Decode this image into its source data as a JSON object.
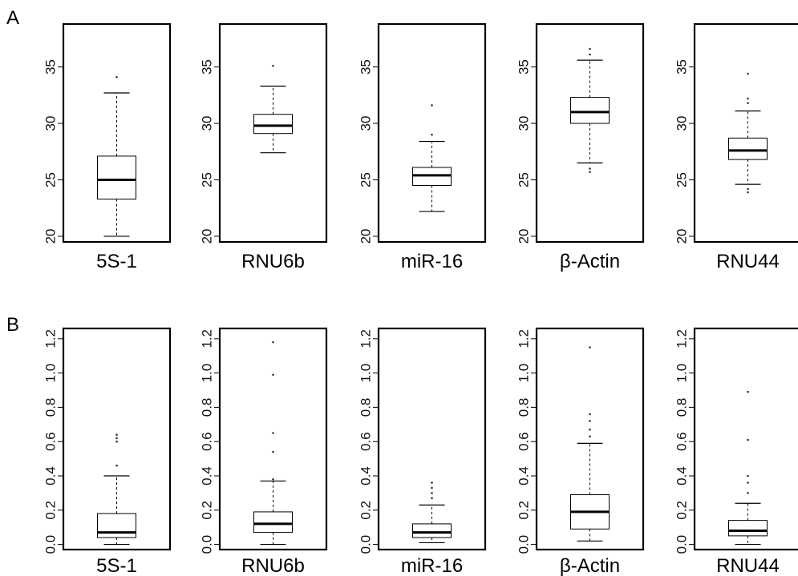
{
  "chart_data": [
    {
      "type": "box",
      "panel_label": "A",
      "ylim": [
        19.5,
        38.8
      ],
      "yticks": [
        20,
        25,
        30,
        35
      ],
      "ytick_labels": [
        "20",
        "25",
        "30",
        "35"
      ],
      "grid": false,
      "boxes": [
        {
          "category": "5S-1",
          "whisker_low": 20.0,
          "q1": 23.3,
          "median": 25.0,
          "q3": 27.1,
          "whisker_high": 32.7,
          "outliers": [
            34.1
          ]
        },
        {
          "category": "RNU6b",
          "whisker_low": 27.4,
          "q1": 29.1,
          "median": 29.8,
          "q3": 30.8,
          "whisker_high": 33.3,
          "outliers": [
            35.1
          ]
        },
        {
          "category": "miR-16",
          "whisker_low": 22.2,
          "q1": 24.5,
          "median": 25.4,
          "q3": 26.1,
          "whisker_high": 28.4,
          "outliers": [
            29.0,
            31.6
          ]
        },
        {
          "category": "β-Actin",
          "whisker_low": 26.5,
          "q1": 30.0,
          "median": 31.0,
          "q3": 32.3,
          "whisker_high": 35.6,
          "outliers": [
            25.7,
            26.0,
            36.1,
            36.6
          ]
        },
        {
          "category": "RNU44",
          "whisker_low": 24.6,
          "q1": 26.8,
          "median": 27.6,
          "q3": 28.7,
          "whisker_high": 31.1,
          "outliers": [
            23.9,
            24.2,
            31.8,
            32.2,
            34.4
          ]
        }
      ]
    },
    {
      "type": "box",
      "panel_label": "B",
      "ylim": [
        -0.03,
        1.26
      ],
      "yticks": [
        0.0,
        0.2,
        0.4,
        0.6,
        0.8,
        1.0,
        1.2
      ],
      "ytick_labels": [
        "0.0",
        "0.2",
        "0.4",
        "0.6",
        "0.8",
        "1.0",
        "1.2"
      ],
      "grid": false,
      "boxes": [
        {
          "category": "5S-1",
          "whisker_low": 0.0,
          "q1": 0.04,
          "median": 0.07,
          "q3": 0.18,
          "whisker_high": 0.4,
          "outliers": [
            0.46,
            0.6,
            0.62,
            0.64
          ]
        },
        {
          "category": "RNU6b",
          "whisker_low": 0.0,
          "q1": 0.07,
          "median": 0.12,
          "q3": 0.19,
          "whisker_high": 0.37,
          "outliers": [
            0.38,
            0.54,
            0.65,
            0.99,
            1.18
          ]
        },
        {
          "category": "miR-16",
          "whisker_low": 0.01,
          "q1": 0.04,
          "median": 0.07,
          "q3": 0.12,
          "whisker_high": 0.23,
          "outliers": [
            0.27,
            0.3,
            0.33,
            0.36
          ]
        },
        {
          "category": "β-Actin",
          "whisker_low": 0.02,
          "q1": 0.09,
          "median": 0.19,
          "q3": 0.29,
          "whisker_high": 0.59,
          "outliers": [
            0.63,
            0.67,
            0.72,
            0.76,
            1.15
          ]
        },
        {
          "category": "RNU44",
          "whisker_low": 0.0,
          "q1": 0.05,
          "median": 0.08,
          "q3": 0.14,
          "whisker_high": 0.24,
          "outliers": [
            0.3,
            0.36,
            0.4,
            0.61,
            0.89
          ]
        }
      ]
    }
  ]
}
